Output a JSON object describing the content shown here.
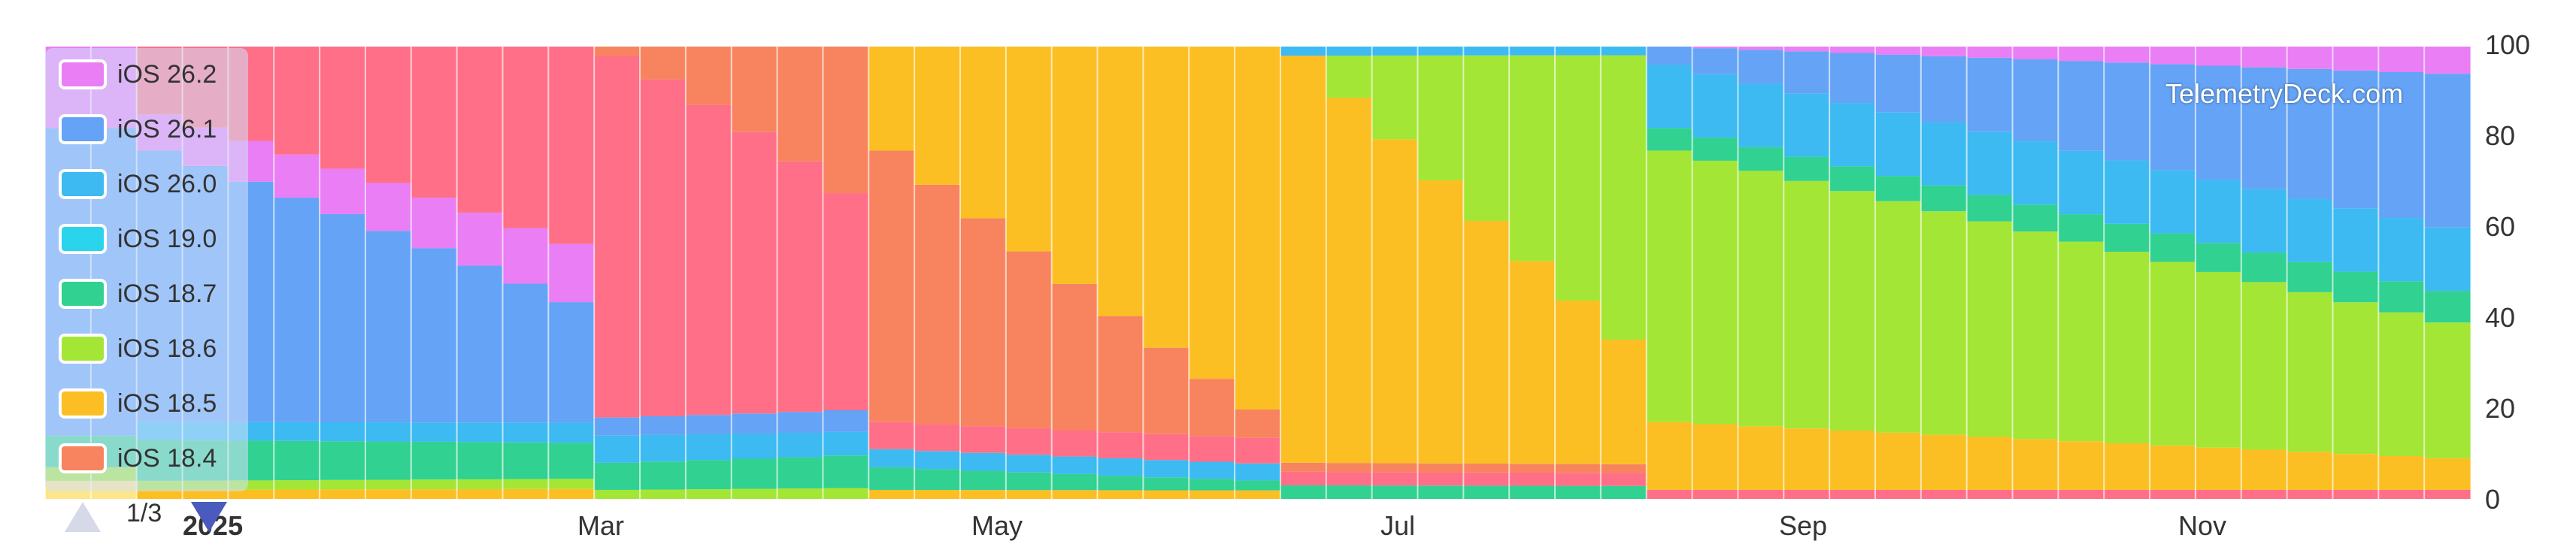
{
  "chart_data": {
    "type": "area",
    "stacked": "percent",
    "x_labels": [
      "2025",
      "Mar",
      "May",
      "Jul",
      "Sep",
      "Nov"
    ],
    "ylim": [
      0,
      100
    ],
    "y_ticks": [
      0,
      20,
      40,
      60,
      80,
      100
    ],
    "y_axis_position": "right",
    "legend_placement": "left",
    "legend_page": "1/3",
    "watermark": "TelemetryDeck.com",
    "series": [
      {
        "name": "iOS 26.2",
        "color": "#e97ef5"
      },
      {
        "name": "iOS 26.1",
        "color": "#64a3f6"
      },
      {
        "name": "iOS 26.0",
        "color": "#3cbaf1"
      },
      {
        "name": "iOS 19.0",
        "color": "#2ad4ec"
      },
      {
        "name": "iOS 18.7",
        "color": "#31d191"
      },
      {
        "name": "iOS 18.6",
        "color": "#a3e635"
      },
      {
        "name": "iOS 18.5",
        "color": "#fbbf24"
      },
      {
        "name": "iOS 18.4",
        "color": "#f7845e"
      }
    ]
  }
}
